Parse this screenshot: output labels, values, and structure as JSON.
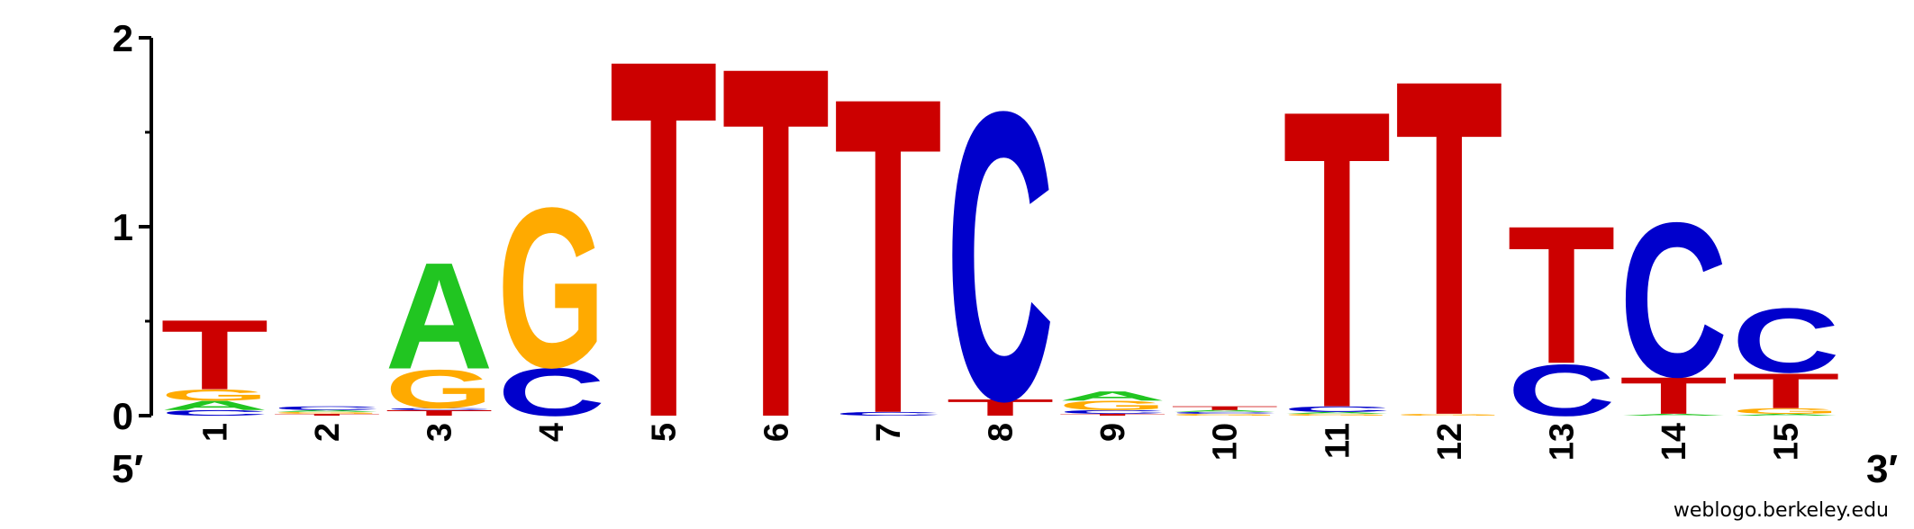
{
  "chart_data": {
    "type": "sequence-logo",
    "ylim": [
      0,
      2
    ],
    "y_ticks": [
      "0",
      "1",
      "2"
    ],
    "end_labels": {
      "left": "5′",
      "right": "3′"
    },
    "colors": {
      "A": "#21c521",
      "C": "#0000cc",
      "G": "#ffaa00",
      "T": "#cc0000"
    },
    "positions": [
      {
        "pos": "1",
        "stack": [
          [
            "C",
            0.03
          ],
          [
            "A",
            0.05
          ],
          [
            "G",
            0.06
          ],
          [
            "T",
            0.38
          ]
        ]
      },
      {
        "pos": "2",
        "stack": [
          [
            "T",
            0.01
          ],
          [
            "G",
            0.01
          ],
          [
            "A",
            0.01
          ],
          [
            "C",
            0.02
          ]
        ]
      },
      {
        "pos": "3",
        "stack": [
          [
            "T",
            0.03
          ],
          [
            "C",
            0.01
          ],
          [
            "G",
            0.21
          ],
          [
            "A",
            0.58
          ]
        ]
      },
      {
        "pos": "4",
        "stack": [
          [
            "C",
            0.26
          ],
          [
            "G",
            0.87
          ]
        ]
      },
      {
        "pos": "5",
        "stack": [
          [
            "T",
            1.95
          ]
        ]
      },
      {
        "pos": "6",
        "stack": [
          [
            "T",
            1.91
          ]
        ]
      },
      {
        "pos": "7",
        "stack": [
          [
            "C",
            0.02
          ],
          [
            "T",
            1.72
          ]
        ]
      },
      {
        "pos": "8",
        "stack": [
          [
            "T",
            0.09
          ],
          [
            "C",
            1.57
          ]
        ]
      },
      {
        "pos": "9",
        "stack": [
          [
            "T",
            0.01
          ],
          [
            "C",
            0.02
          ],
          [
            "G",
            0.05
          ],
          [
            "A",
            0.05
          ]
        ]
      },
      {
        "pos": "10",
        "stack": [
          [
            "G",
            0.01
          ],
          [
            "C",
            0.01
          ],
          [
            "A",
            0.01
          ],
          [
            "T",
            0.02
          ]
        ]
      },
      {
        "pos": "11",
        "stack": [
          [
            "G",
            0.01
          ],
          [
            "A",
            0.01
          ],
          [
            "C",
            0.03
          ],
          [
            "T",
            1.62
          ]
        ]
      },
      {
        "pos": "12",
        "stack": [
          [
            "G",
            0.01
          ],
          [
            "T",
            1.83
          ]
        ]
      },
      {
        "pos": "13",
        "stack": [
          [
            "C",
            0.28
          ],
          [
            "T",
            0.75
          ]
        ]
      },
      {
        "pos": "14",
        "stack": [
          [
            "A",
            0.01
          ],
          [
            "T",
            0.2
          ],
          [
            "C",
            0.84
          ]
        ]
      },
      {
        "pos": "15",
        "stack": [
          [
            "A",
            0.01
          ],
          [
            "G",
            0.03
          ],
          [
            "T",
            0.19
          ],
          [
            "C",
            0.35
          ]
        ]
      }
    ]
  },
  "credit": "weblogo.berkeley.edu"
}
